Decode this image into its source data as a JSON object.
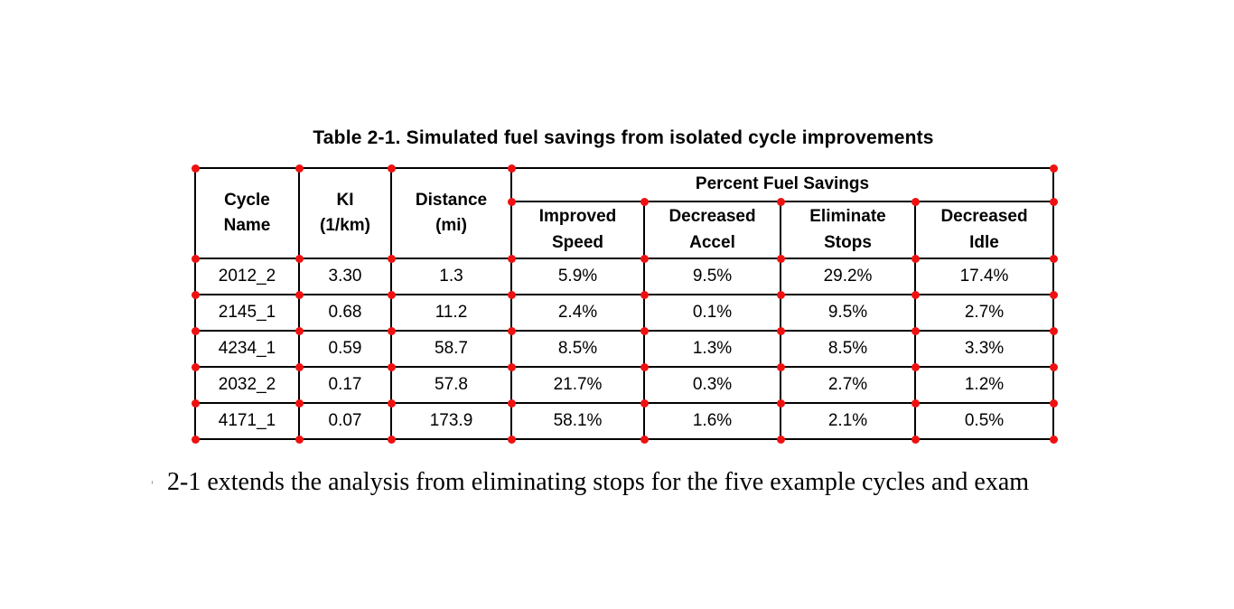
{
  "caption": "Table 2-1. Simulated fuel savings from isolated cycle improvements",
  "table": {
    "col_headers": [
      "Cycle\nName",
      "KI\n(1/km)",
      "Distance\n(mi)"
    ],
    "group_header": "Percent Fuel Savings",
    "sub_headers": [
      "Improved\nSpeed",
      "Decreased\nAccel",
      "Eliminate\nStops",
      "Decreased\nIdle"
    ],
    "rows": [
      [
        "2012_2",
        "3.30",
        "1.3",
        "5.9%",
        "9.5%",
        "29.2%",
        "17.4%"
      ],
      [
        "2145_1",
        "0.68",
        "11.2",
        "2.4%",
        "0.1%",
        "9.5%",
        "2.7%"
      ],
      [
        "4234_1",
        "0.59",
        "58.7",
        "8.5%",
        "1.3%",
        "8.5%",
        "3.3%"
      ],
      [
        "2032_2",
        "0.17",
        "57.8",
        "21.7%",
        "0.3%",
        "2.7%",
        "1.2%"
      ],
      [
        "4171_1",
        "0.07",
        "173.9",
        "58.1%",
        "1.6%",
        "2.1%",
        "0.5%"
      ]
    ]
  },
  "body_text": {
    "leading_fragment": "e",
    "text": "2-1 extends the analysis from eliminating stops for the five example cycles and exam"
  },
  "annotation": {
    "dot_color": "#ee1111"
  }
}
